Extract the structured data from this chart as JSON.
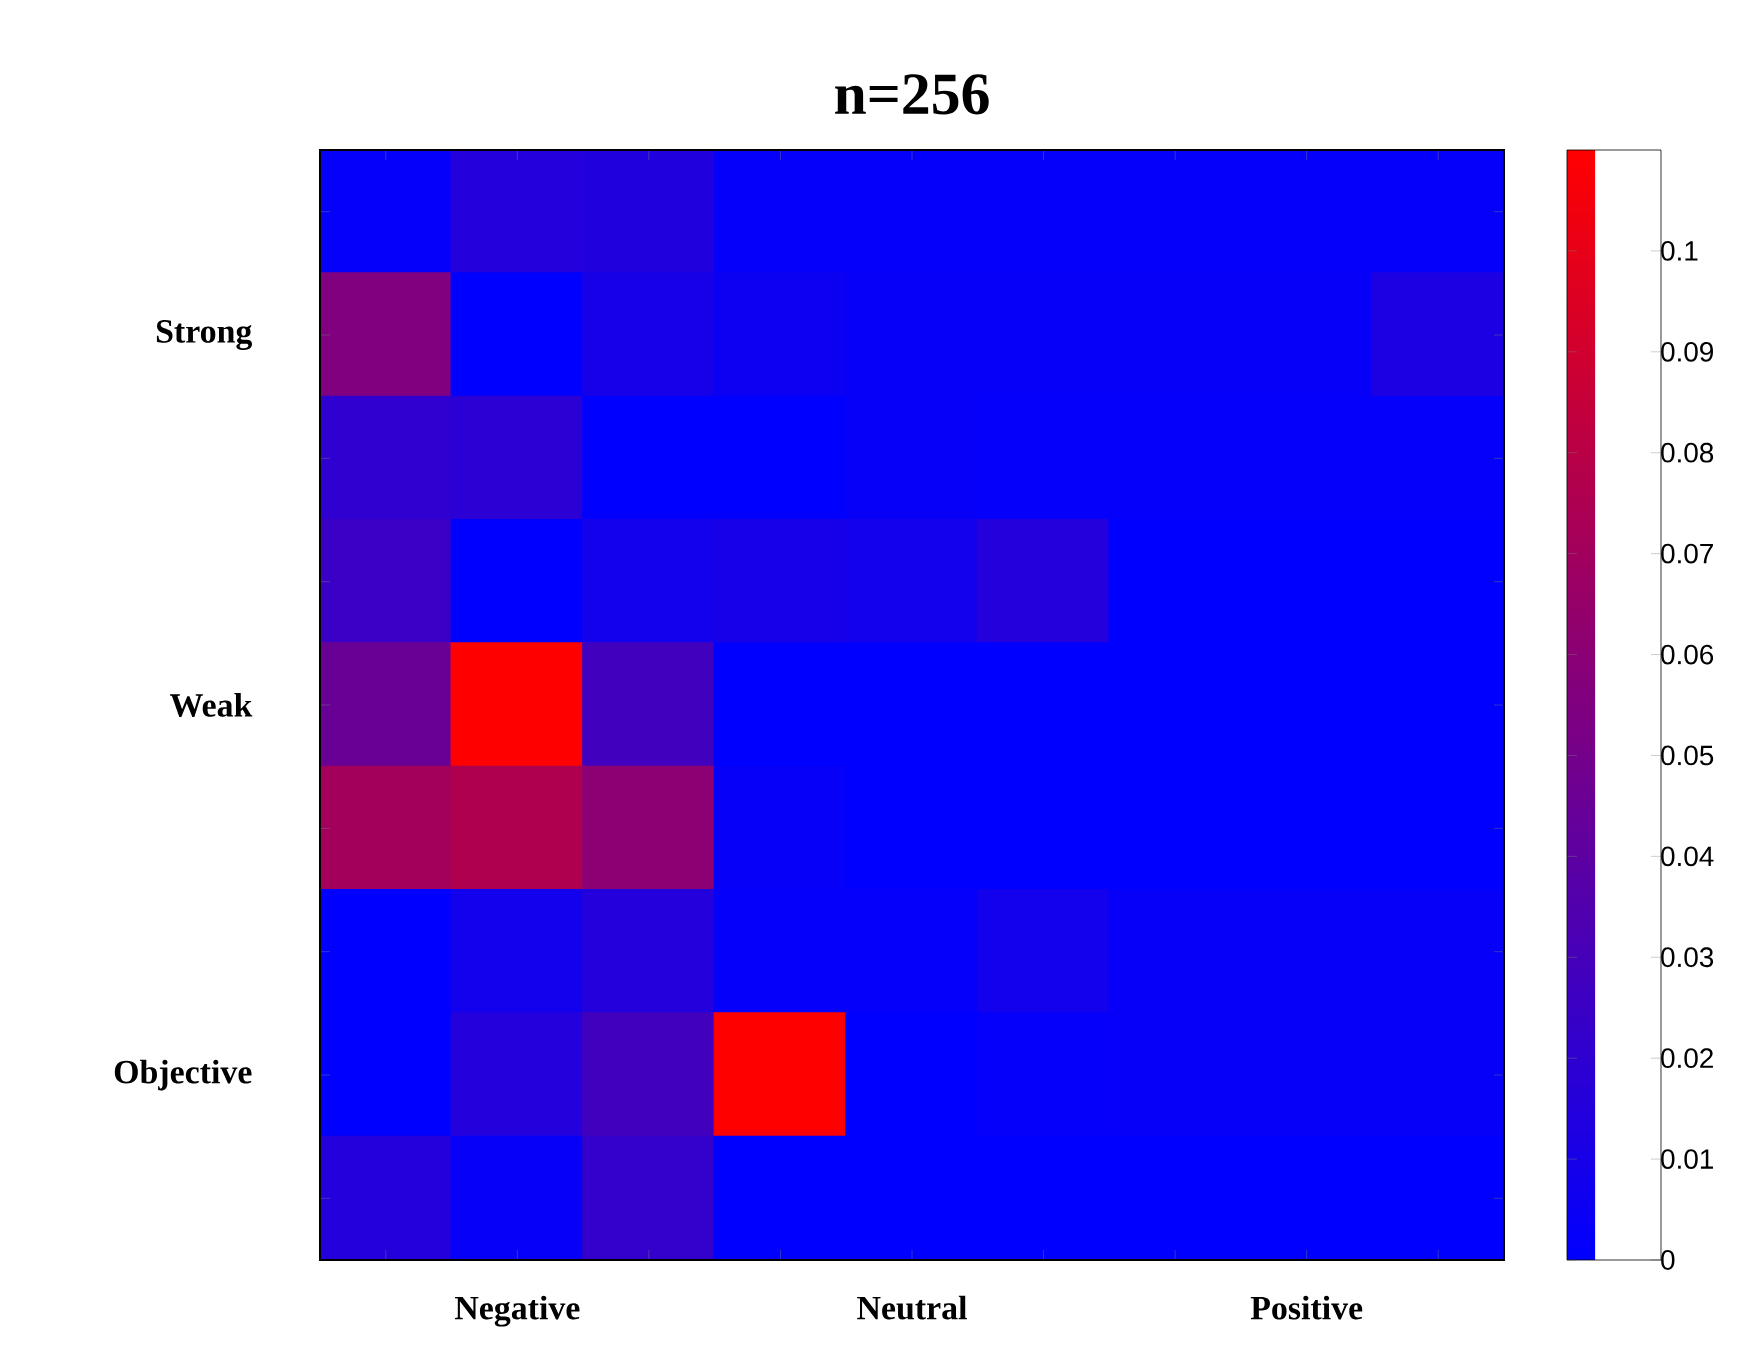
{
  "chart_data": {
    "type": "heatmap",
    "title": "n=256",
    "categories": [
      null,
      "Negative",
      null,
      null,
      "Neutral",
      null,
      null,
      "Positive",
      null
    ],
    "y_categories": [
      null,
      "Strong",
      null,
      null,
      "Weak",
      null,
      null,
      "Objective",
      null
    ],
    "cells": [
      [
        0.002,
        0.015,
        0.014,
        0.002,
        0.002,
        0.002,
        0.002,
        0.002,
        0.002
      ],
      [
        0.055,
        0,
        0.01,
        0.005,
        0.003,
        0.003,
        0.003,
        0.003,
        0.012
      ],
      [
        0.02,
        0.018,
        0,
        0,
        0.003,
        0.002,
        0.002,
        0.002,
        0.002
      ],
      [
        0.025,
        0,
        0.008,
        0.01,
        0.008,
        0.015,
        0,
        0,
        0
      ],
      [
        0.045,
        0.11,
        0.028,
        0,
        0,
        0,
        0,
        0,
        0
      ],
      [
        0.07,
        0.075,
        0.06,
        0.003,
        0,
        0,
        0,
        0,
        0
      ],
      [
        0,
        0.008,
        0.015,
        0.002,
        0.002,
        0.008,
        0.003,
        0.003,
        0.003
      ],
      [
        0,
        0.015,
        0.028,
        0.11,
        0,
        0.002,
        0.003,
        0.003,
        0.003
      ],
      [
        0.015,
        0.003,
        0.022,
        0,
        0,
        0,
        0,
        0,
        0
      ]
    ],
    "clim": [
      0,
      0.11
    ],
    "cticks": [
      0,
      0.01,
      0.02,
      0.03,
      0.04,
      0.05,
      0.06,
      0.07,
      0.08,
      0.09,
      0.1
    ]
  }
}
